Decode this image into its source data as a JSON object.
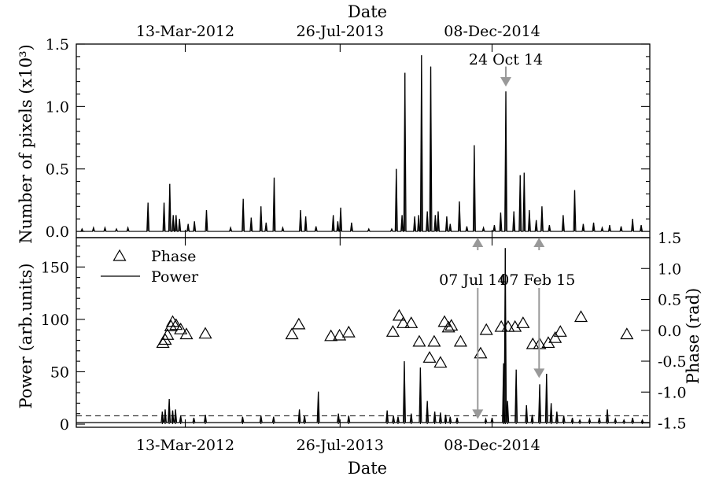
{
  "chart_data": [
    {
      "id": "top",
      "type": "line",
      "title": "Date",
      "ylabel": "Number of pixels (x10³)",
      "xlim": [
        0,
        100
      ],
      "ylim": [
        -0.05,
        1.5
      ],
      "x_tick_labels": [
        {
          "x": 19,
          "label": "13-Mar-2012"
        },
        {
          "x": 46,
          "label": "26-Jul-2013"
        },
        {
          "x": 72.5,
          "label": "08-Dec-2014"
        }
      ],
      "y_ticks": [
        {
          "value": 0.0,
          "label": "0.0"
        },
        {
          "value": 0.5,
          "label": "0.5"
        },
        {
          "value": 1.0,
          "label": "1.0"
        },
        {
          "value": 1.5,
          "label": "1.5"
        }
      ],
      "peaks": [
        {
          "x": 1.0,
          "y": 0.02
        },
        {
          "x": 3.0,
          "y": 0.03
        },
        {
          "x": 5.0,
          "y": 0.03
        },
        {
          "x": 7.0,
          "y": 0.02
        },
        {
          "x": 9.0,
          "y": 0.03
        },
        {
          "x": 12.5,
          "y": 0.23
        },
        {
          "x": 15.3,
          "y": 0.23
        },
        {
          "x": 16.3,
          "y": 0.38
        },
        {
          "x": 16.9,
          "y": 0.13
        },
        {
          "x": 17.4,
          "y": 0.13
        },
        {
          "x": 18.0,
          "y": 0.1
        },
        {
          "x": 19.5,
          "y": 0.06
        },
        {
          "x": 20.6,
          "y": 0.08
        },
        {
          "x": 22.7,
          "y": 0.17
        },
        {
          "x": 26.9,
          "y": 0.03
        },
        {
          "x": 29.1,
          "y": 0.26
        },
        {
          "x": 30.5,
          "y": 0.11
        },
        {
          "x": 32.2,
          "y": 0.2
        },
        {
          "x": 33.1,
          "y": 0.07
        },
        {
          "x": 34.5,
          "y": 0.43
        },
        {
          "x": 36.0,
          "y": 0.03
        },
        {
          "x": 39.1,
          "y": 0.17
        },
        {
          "x": 40.0,
          "y": 0.12
        },
        {
          "x": 41.8,
          "y": 0.04
        },
        {
          "x": 44.8,
          "y": 0.13
        },
        {
          "x": 45.6,
          "y": 0.08
        },
        {
          "x": 46.1,
          "y": 0.19
        },
        {
          "x": 48.0,
          "y": 0.07
        },
        {
          "x": 51.0,
          "y": 0.02
        },
        {
          "x": 55.0,
          "y": 0.02
        },
        {
          "x": 55.8,
          "y": 0.5
        },
        {
          "x": 56.8,
          "y": 0.13
        },
        {
          "x": 57.3,
          "y": 1.27
        },
        {
          "x": 59.0,
          "y": 0.12
        },
        {
          "x": 59.7,
          "y": 0.13
        },
        {
          "x": 60.2,
          "y": 1.41
        },
        {
          "x": 61.2,
          "y": 0.16
        },
        {
          "x": 61.8,
          "y": 1.32
        },
        {
          "x": 62.6,
          "y": 0.13
        },
        {
          "x": 63.1,
          "y": 0.16
        },
        {
          "x": 64.6,
          "y": 0.12
        },
        {
          "x": 65.2,
          "y": 0.06
        },
        {
          "x": 66.8,
          "y": 0.24
        },
        {
          "x": 68.1,
          "y": 0.04
        },
        {
          "x": 69.4,
          "y": 0.69
        },
        {
          "x": 71.0,
          "y": 0.03
        },
        {
          "x": 72.9,
          "y": 0.05
        },
        {
          "x": 74.0,
          "y": 0.15
        },
        {
          "x": 74.9,
          "y": 1.12
        },
        {
          "x": 76.3,
          "y": 0.16
        },
        {
          "x": 77.4,
          "y": 0.45
        },
        {
          "x": 78.1,
          "y": 0.47
        },
        {
          "x": 79.0,
          "y": 0.17
        },
        {
          "x": 80.2,
          "y": 0.09
        },
        {
          "x": 81.2,
          "y": 0.2
        },
        {
          "x": 82.5,
          "y": 0.05
        },
        {
          "x": 84.9,
          "y": 0.13
        },
        {
          "x": 86.9,
          "y": 0.33
        },
        {
          "x": 88.4,
          "y": 0.06
        },
        {
          "x": 90.2,
          "y": 0.07
        },
        {
          "x": 91.7,
          "y": 0.03
        },
        {
          "x": 93.0,
          "y": 0.05
        },
        {
          "x": 95.0,
          "y": 0.04
        },
        {
          "x": 97.0,
          "y": 0.1
        },
        {
          "x": 98.5,
          "y": 0.05
        }
      ],
      "annotation": {
        "label": "24 Oct 14",
        "x": 74.9,
        "y_from": 1.32,
        "y_to": 1.16
      }
    },
    {
      "id": "bottom",
      "type": "line",
      "xlabel": "Date",
      "ylabel": "Power (arb.units)",
      "y2label": "Phase (rad)",
      "xlim": [
        0,
        100
      ],
      "ylim": [
        -3,
        178
      ],
      "y2lim": [
        -1.57,
        1.5
      ],
      "x_tick_labels": [
        {
          "x": 19,
          "label": "13-Mar-2012"
        },
        {
          "x": 46,
          "label": "26-Jul-2013"
        },
        {
          "x": 72.5,
          "label": "08-Dec-2014"
        }
      ],
      "y_ticks": [
        {
          "value": 0,
          "label": "0"
        },
        {
          "value": 50,
          "label": "50"
        },
        {
          "value": 100,
          "label": "100"
        },
        {
          "value": 150,
          "label": "150"
        }
      ],
      "y2_ticks": [
        {
          "value": 1.5,
          "label": "1.5"
        },
        {
          "value": 1.0,
          "label": "1.0"
        },
        {
          "value": 0.5,
          "label": "0.5"
        },
        {
          "value": 0.0,
          "label": "0.0"
        },
        {
          "value": -0.5,
          "label": "-0.5"
        },
        {
          "value": -1.0,
          "label": "-1.0"
        },
        {
          "value": -1.5,
          "label": "-1.5"
        }
      ],
      "threshold": 8,
      "legend": [
        {
          "marker": "triangle",
          "label": "Phase"
        },
        {
          "marker": "line",
          "label": "Power"
        }
      ],
      "power_peaks": [
        {
          "x": 15.0,
          "y": 12
        },
        {
          "x": 15.5,
          "y": 14
        },
        {
          "x": 16.2,
          "y": 24
        },
        {
          "x": 16.8,
          "y": 13
        },
        {
          "x": 17.3,
          "y": 14
        },
        {
          "x": 18.2,
          "y": 8
        },
        {
          "x": 20.5,
          "y": 6
        },
        {
          "x": 22.5,
          "y": 9
        },
        {
          "x": 29.0,
          "y": 7
        },
        {
          "x": 32.2,
          "y": 8
        },
        {
          "x": 34.4,
          "y": 7
        },
        {
          "x": 38.9,
          "y": 14
        },
        {
          "x": 39.8,
          "y": 8
        },
        {
          "x": 42.2,
          "y": 31
        },
        {
          "x": 45.7,
          "y": 10
        },
        {
          "x": 47.5,
          "y": 8
        },
        {
          "x": 54.2,
          "y": 13
        },
        {
          "x": 55.3,
          "y": 8
        },
        {
          "x": 56.1,
          "y": 7
        },
        {
          "x": 57.2,
          "y": 60
        },
        {
          "x": 58.4,
          "y": 10
        },
        {
          "x": 60.0,
          "y": 54
        },
        {
          "x": 61.2,
          "y": 22
        },
        {
          "x": 62.5,
          "y": 12
        },
        {
          "x": 63.5,
          "y": 11
        },
        {
          "x": 64.4,
          "y": 9
        },
        {
          "x": 65.2,
          "y": 7
        },
        {
          "x": 66.4,
          "y": 6
        },
        {
          "x": 71.4,
          "y": 5
        },
        {
          "x": 72.5,
          "y": 6
        },
        {
          "x": 74.5,
          "y": 58
        },
        {
          "x": 74.8,
          "y": 168
        },
        {
          "x": 75.2,
          "y": 22
        },
        {
          "x": 76.7,
          "y": 52
        },
        {
          "x": 78.5,
          "y": 18
        },
        {
          "x": 79.5,
          "y": 9
        },
        {
          "x": 80.8,
          "y": 38
        },
        {
          "x": 82.0,
          "y": 48
        },
        {
          "x": 82.8,
          "y": 20
        },
        {
          "x": 83.8,
          "y": 12
        },
        {
          "x": 85.0,
          "y": 8
        },
        {
          "x": 86.5,
          "y": 6
        },
        {
          "x": 87.8,
          "y": 4
        },
        {
          "x": 89.5,
          "y": 5
        },
        {
          "x": 91.2,
          "y": 6
        },
        {
          "x": 92.6,
          "y": 14
        },
        {
          "x": 94.0,
          "y": 5
        },
        {
          "x": 95.5,
          "y": 4
        },
        {
          "x": 97.0,
          "y": 6
        },
        {
          "x": 98.7,
          "y": 4
        }
      ],
      "phase_points": [
        {
          "x": 15.1,
          "y": -0.2
        },
        {
          "x": 15.5,
          "y": -0.15
        },
        {
          "x": 15.9,
          "y": -0.07
        },
        {
          "x": 16.5,
          "y": 0.07
        },
        {
          "x": 16.8,
          "y": 0.14
        },
        {
          "x": 17.4,
          "y": 0.09
        },
        {
          "x": 18.2,
          "y": 0.02
        },
        {
          "x": 19.2,
          "y": -0.06
        },
        {
          "x": 22.5,
          "y": -0.05
        },
        {
          "x": 37.6,
          "y": -0.06
        },
        {
          "x": 38.8,
          "y": 0.1
        },
        {
          "x": 44.4,
          "y": -0.09
        },
        {
          "x": 45.9,
          "y": -0.08
        },
        {
          "x": 47.5,
          "y": -0.03
        },
        {
          "x": 55.2,
          "y": -0.02
        },
        {
          "x": 56.3,
          "y": 0.24
        },
        {
          "x": 57.0,
          "y": 0.12
        },
        {
          "x": 58.4,
          "y": 0.12
        },
        {
          "x": 59.8,
          "y": -0.18
        },
        {
          "x": 61.6,
          "y": -0.44
        },
        {
          "x": 62.4,
          "y": -0.18
        },
        {
          "x": 63.5,
          "y": -0.52
        },
        {
          "x": 64.2,
          "y": 0.14
        },
        {
          "x": 64.9,
          "y": 0.05
        },
        {
          "x": 65.4,
          "y": 0.08
        },
        {
          "x": 67.0,
          "y": -0.18
        },
        {
          "x": 70.5,
          "y": -0.37
        },
        {
          "x": 71.5,
          "y": 0.01
        },
        {
          "x": 74.1,
          "y": 0.06
        },
        {
          "x": 75.3,
          "y": 0.06
        },
        {
          "x": 76.5,
          "y": 0.06
        },
        {
          "x": 77.9,
          "y": 0.12
        },
        {
          "x": 79.6,
          "y": -0.22
        },
        {
          "x": 80.8,
          "y": -0.22
        },
        {
          "x": 82.3,
          "y": -0.2
        },
        {
          "x": 83.5,
          "y": -0.12
        },
        {
          "x": 84.4,
          "y": -0.02
        },
        {
          "x": 88.0,
          "y": 0.22
        },
        {
          "x": 96.0,
          "y": -0.06
        }
      ],
      "annotations": [
        {
          "label": "07 Jul 14",
          "x": 70.0,
          "y_from": 175,
          "y_to": 5
        },
        {
          "label": "07 Feb 15",
          "x": 80.7,
          "y_from": 175,
          "y_to": 44
        }
      ]
    }
  ]
}
